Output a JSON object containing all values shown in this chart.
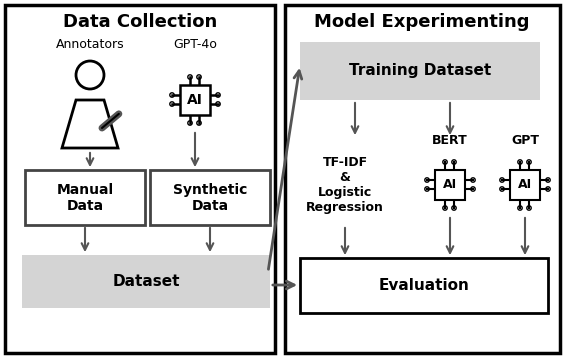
{
  "left_panel_title": "Data Collection",
  "right_panel_title": "Model Experimenting",
  "annotators_label": "Annotators",
  "gpt4o_label": "GPT-4o",
  "manual_data_label": "Manual\nData",
  "synthetic_data_label": "Synthetic\nData",
  "dataset_label": "Dataset",
  "training_label": "Training Dataset",
  "tfidf_label": "TF-IDF\n&\nLogistic\nRegression",
  "bert_label": "BERT",
  "gpt_label": "GPT",
  "evaluation_label": "Evaluation",
  "gray_fill": "#d4d4d4",
  "white_fill": "#ffffff",
  "border_dark": "#1a1a1a",
  "border_mid": "#444444",
  "arrow_col": "#666666"
}
